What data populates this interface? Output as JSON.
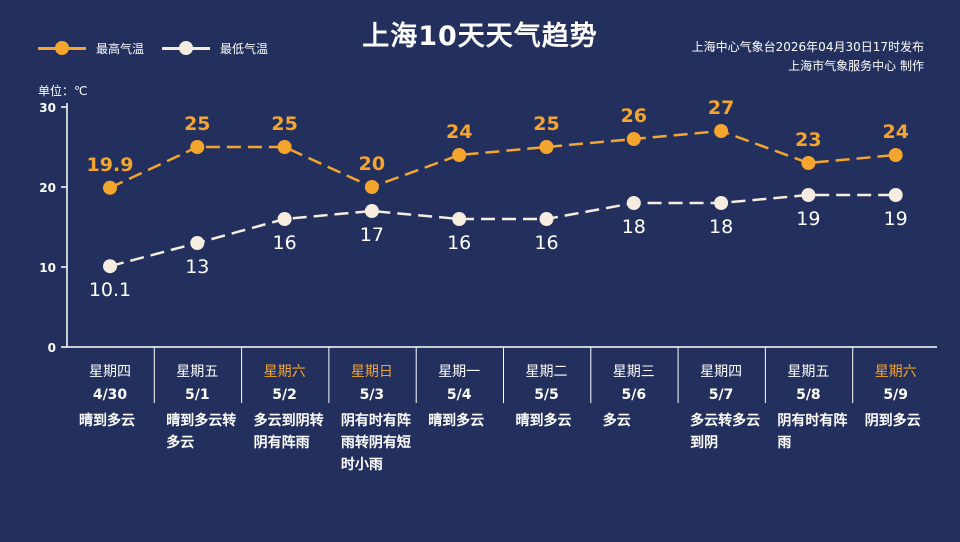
{
  "title": "上海10天天气趋势",
  "legend": {
    "high_label": "最高气温",
    "low_label": "最低气温"
  },
  "source": {
    "line1": "上海中心气象台2026年04月30日17时发布",
    "line2": "上海市气象服务中心  制作"
  },
  "unit_label": "单位：℃",
  "colors": {
    "background": "#23305e",
    "high": "#f4a52e",
    "low": "#f6ece0",
    "weekend": "#f4a52e"
  },
  "days": [
    {
      "weekday": "星期四",
      "date": "4/30",
      "desc": "晴到多云",
      "weekend": false
    },
    {
      "weekday": "星期五",
      "date": "5/1",
      "desc": "晴到多云转多云",
      "weekend": false
    },
    {
      "weekday": "星期六",
      "date": "5/2",
      "desc": "多云到阴转阴有阵雨",
      "weekend": true
    },
    {
      "weekday": "星期日",
      "date": "5/3",
      "desc": "阴有时有阵雨转阴有短时小雨",
      "weekend": true
    },
    {
      "weekday": "星期一",
      "date": "5/4",
      "desc": "晴到多云",
      "weekend": false
    },
    {
      "weekday": "星期二",
      "date": "5/5",
      "desc": "晴到多云",
      "weekend": false
    },
    {
      "weekday": "星期三",
      "date": "5/6",
      "desc": "多云",
      "weekend": false
    },
    {
      "weekday": "星期四",
      "date": "5/7",
      "desc": "多云转多云到阴",
      "weekend": false
    },
    {
      "weekday": "星期五",
      "date": "5/8",
      "desc": "阴有时有阵雨",
      "weekend": false
    },
    {
      "weekday": "星期六",
      "date": "5/9",
      "desc": "阴到多云",
      "weekend": true
    }
  ],
  "chart_data": {
    "type": "line",
    "title": "上海10天天气趋势",
    "categories": [
      "4/30",
      "5/1",
      "5/2",
      "5/3",
      "5/4",
      "5/5",
      "5/6",
      "5/7",
      "5/8",
      "5/9"
    ],
    "series": [
      {
        "name": "最高气温",
        "values": [
          19.9,
          25,
          25,
          20,
          24,
          25,
          26,
          27,
          23,
          24
        ],
        "labels": [
          "19.9",
          "25",
          "25",
          "20",
          "24",
          "25",
          "26",
          "27",
          "23",
          "24"
        ]
      },
      {
        "name": "最低气温",
        "values": [
          10.1,
          13,
          16,
          17,
          16,
          16,
          18,
          18,
          19,
          19
        ],
        "labels": [
          "10.1",
          "13",
          "16",
          "17",
          "16",
          "16",
          "18",
          "18",
          "19",
          "19"
        ]
      }
    ],
    "ylim": [
      0,
      30
    ],
    "yticks": [
      "0",
      "10",
      "20",
      "30"
    ],
    "ylabel": "单位：℃",
    "grid": false,
    "legend": "top-left",
    "line_style": "dashed"
  }
}
